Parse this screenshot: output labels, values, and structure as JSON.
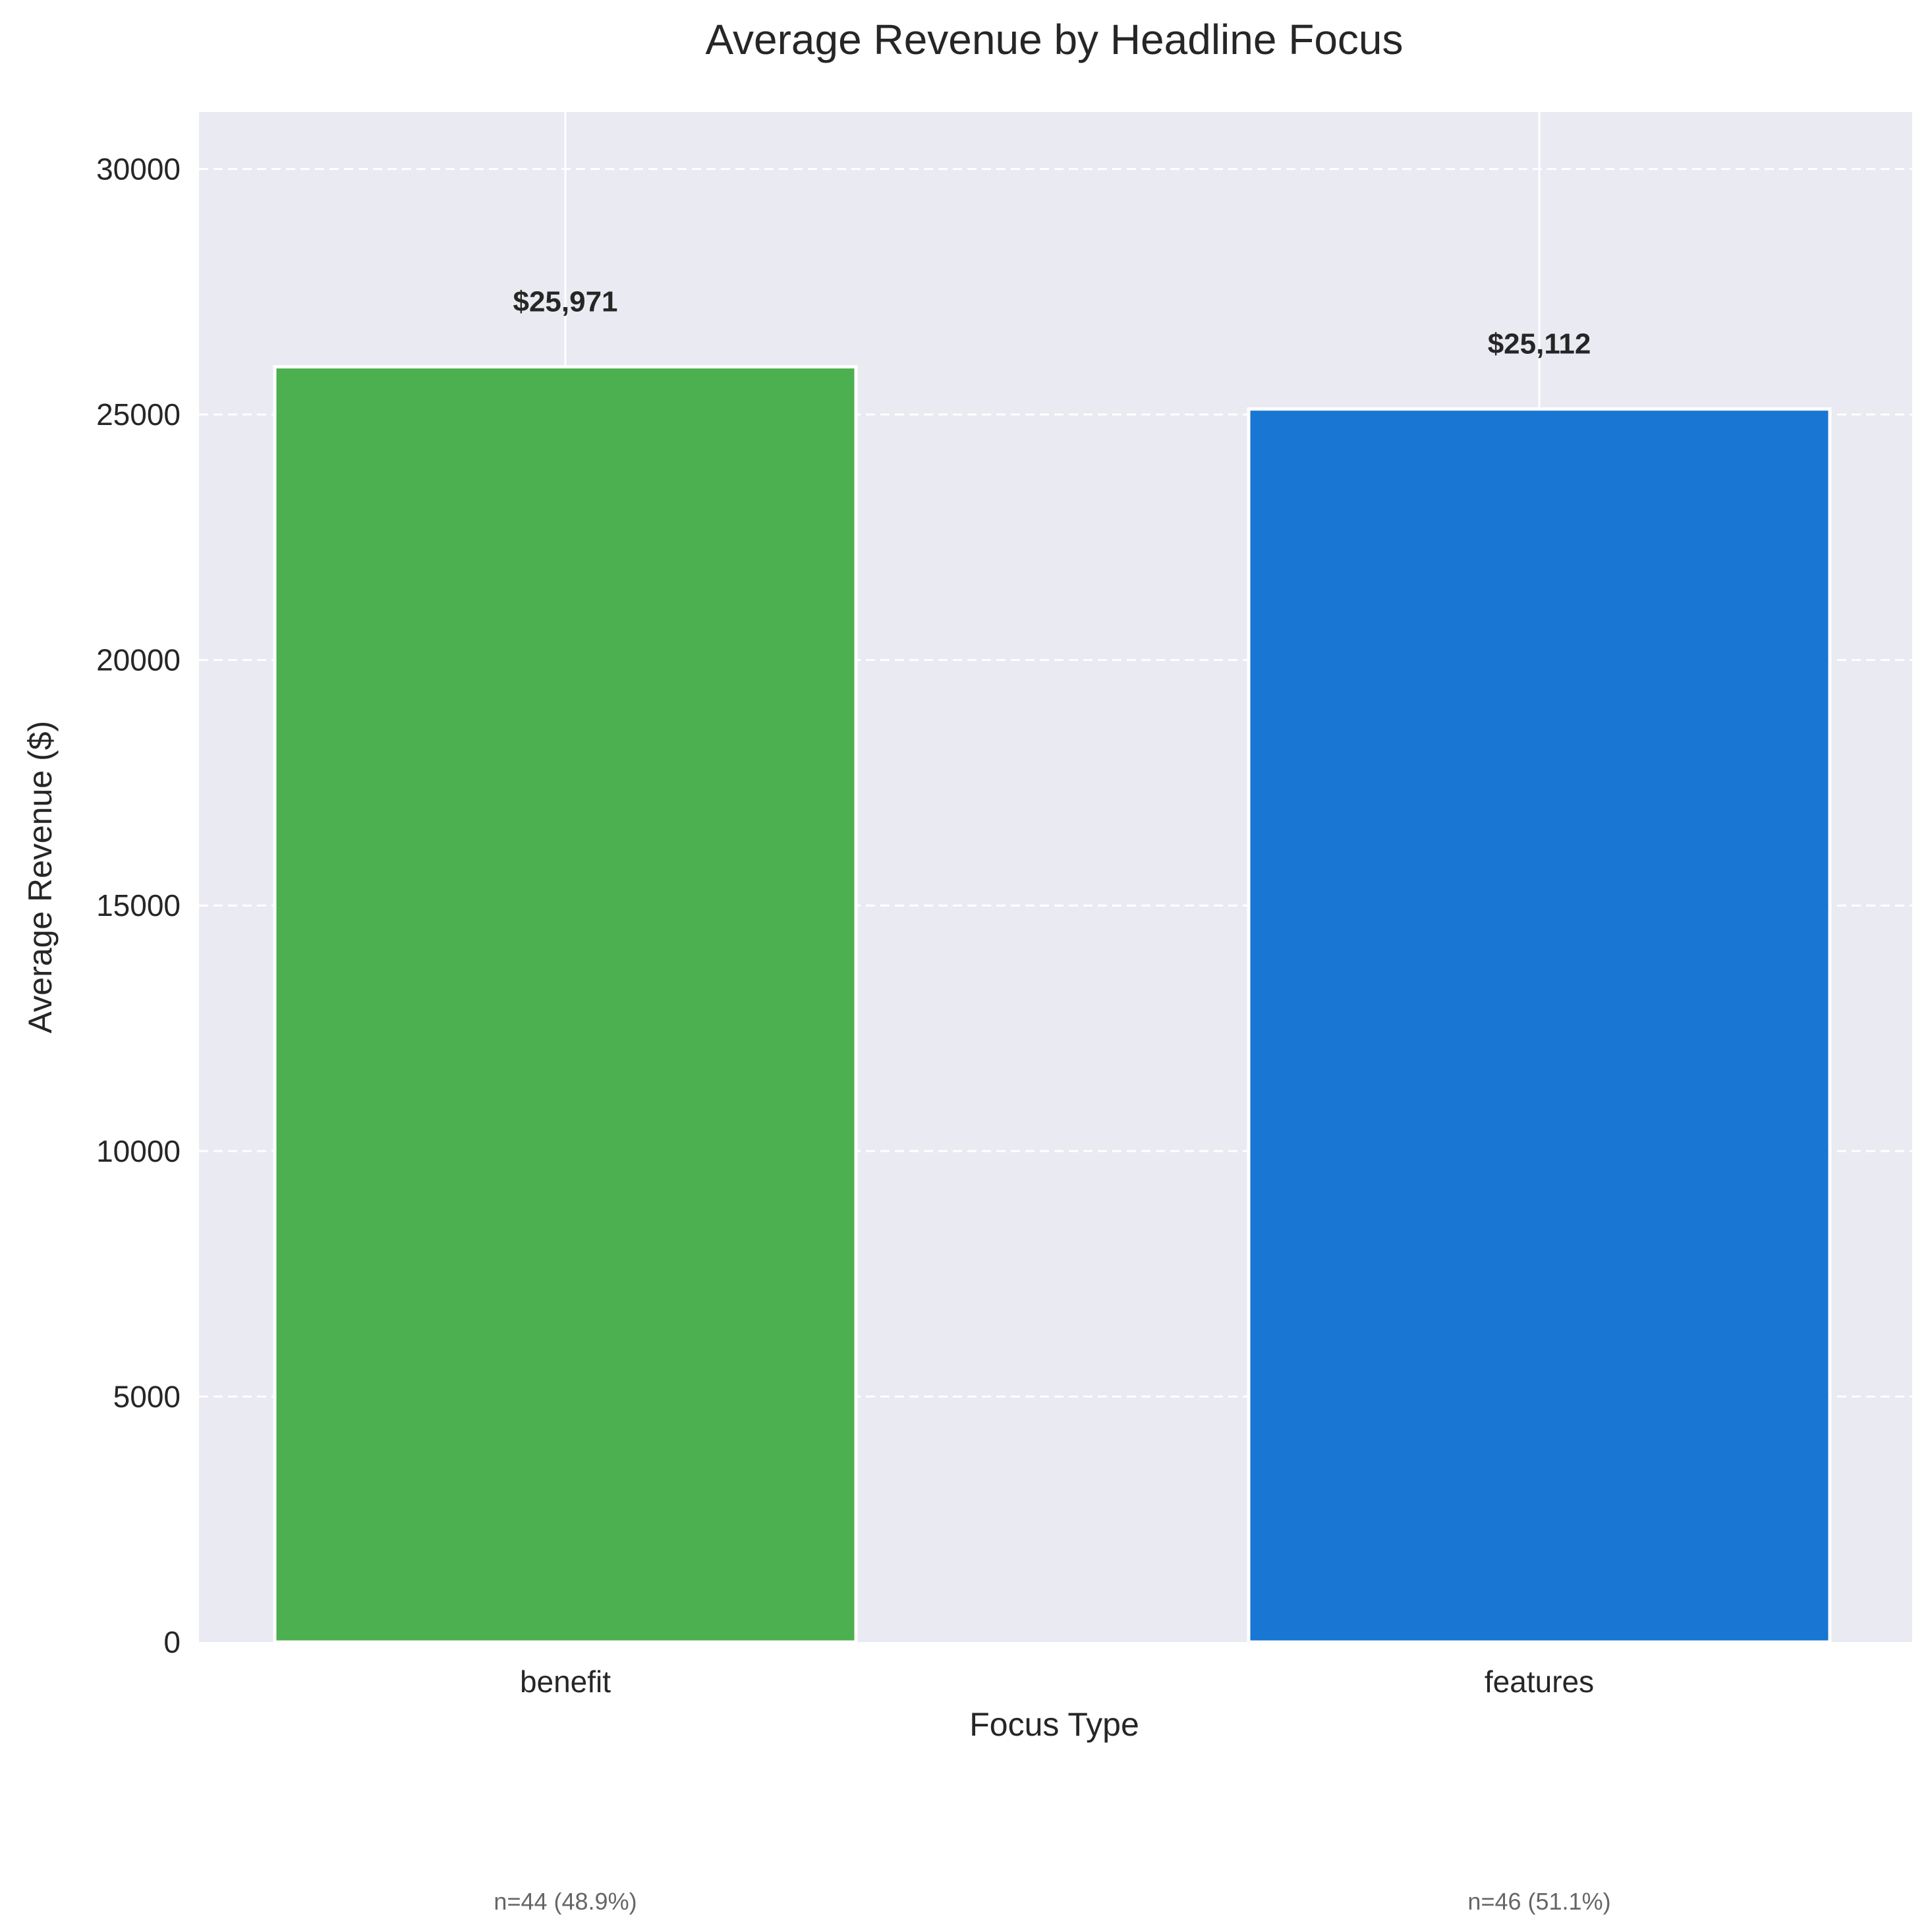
{
  "chart_data": {
    "type": "bar",
    "title": "Average Revenue by Headline Focus",
    "xlabel": "Focus Type",
    "ylabel": "Average Revenue ($)",
    "categories": [
      "benefit",
      "features"
    ],
    "values": [
      25971,
      25112
    ],
    "data_labels": [
      "$25,971",
      "$25,112"
    ],
    "sample_notes": [
      "n=44 (48.9%)",
      "n=46 (51.1%)"
    ],
    "colors": [
      "#4caf50",
      "#1976d2"
    ],
    "yticks": [
      0,
      5000,
      10000,
      15000,
      20000,
      25000,
      30000
    ],
    "ylim": [
      0,
      31160
    ],
    "grid": true,
    "background": "#eaeaf2"
  }
}
